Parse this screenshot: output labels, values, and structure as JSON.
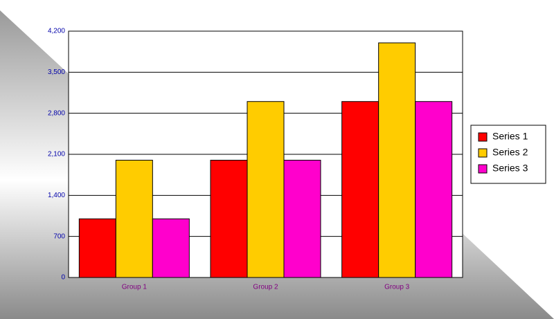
{
  "chart_data": {
    "type": "bar",
    "categories": [
      "Group 1",
      "Group 2",
      "Group 3"
    ],
    "series": [
      {
        "name": "Series 1",
        "color": "#ff0000",
        "values": [
          1000,
          2000,
          3000
        ]
      },
      {
        "name": "Series 2",
        "color": "#ffcc00",
        "values": [
          2000,
          3000,
          4000
        ]
      },
      {
        "name": "Series 3",
        "color": "#ff00cc",
        "values": [
          1000,
          2000,
          3000
        ]
      }
    ],
    "ylim": [
      0,
      4200
    ],
    "yticks": [
      0,
      700,
      {
        "value": 1400,
        "label": "1,400"
      },
      {
        "value": 2100,
        "label": "2,100"
      },
      {
        "value": 2800,
        "label": "2,800"
      },
      {
        "value": 3500,
        "label": "3,500"
      },
      {
        "value": 4200,
        "label": "4,200"
      }
    ],
    "grid": true,
    "legend": "right"
  }
}
